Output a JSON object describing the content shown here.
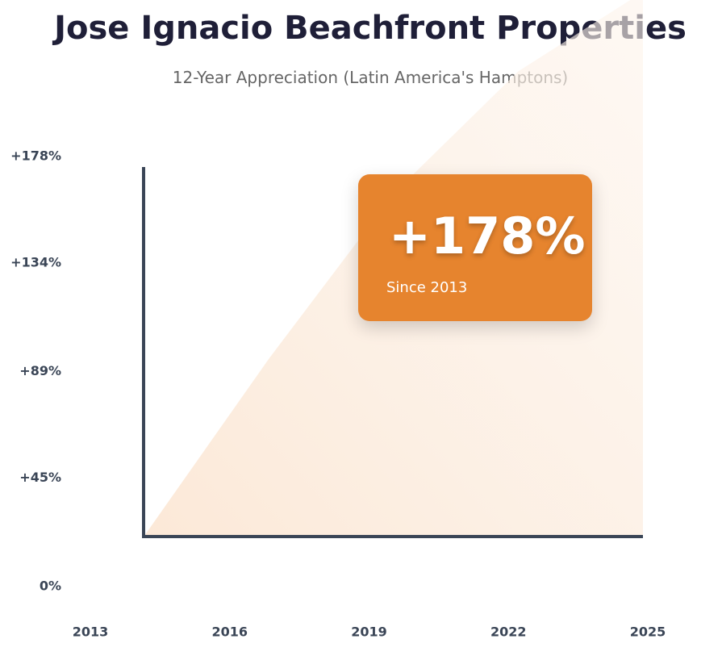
{
  "header": {
    "title": "Jose Ignacio Beachfront Properties",
    "subtitle": "12-Year Appreciation (Latin America's Hamptons)"
  },
  "callout": {
    "value": "+178%",
    "caption": "Since 2013"
  },
  "colors": {
    "accent": "#e6842e",
    "axis": "#3a4556",
    "fill_light": "#fdf1e6"
  },
  "chart_data": {
    "type": "area",
    "title": "Jose Ignacio Beachfront Properties",
    "subtitle": "12-Year Appreciation (Latin America's Hamptons)",
    "x": [
      2013,
      2016,
      2019,
      2022,
      2025
    ],
    "x_tick_labels": [
      "2013",
      "2016",
      "2019",
      "2022",
      "2025"
    ],
    "y_tick_values": [
      0,
      45,
      89,
      134,
      178
    ],
    "y_tick_labels": [
      "0%",
      "+45%",
      "+89%",
      "+134%",
      "+178%"
    ],
    "series": [
      {
        "x": [
          2013,
          2016,
          2019,
          2022,
          2025
        ],
        "values": [
          0,
          58,
          112,
          152,
          178
        ]
      }
    ],
    "ylim": [
      0,
      178
    ],
    "xlim": [
      2013,
      2025
    ],
    "grid": false,
    "legend": "none"
  }
}
